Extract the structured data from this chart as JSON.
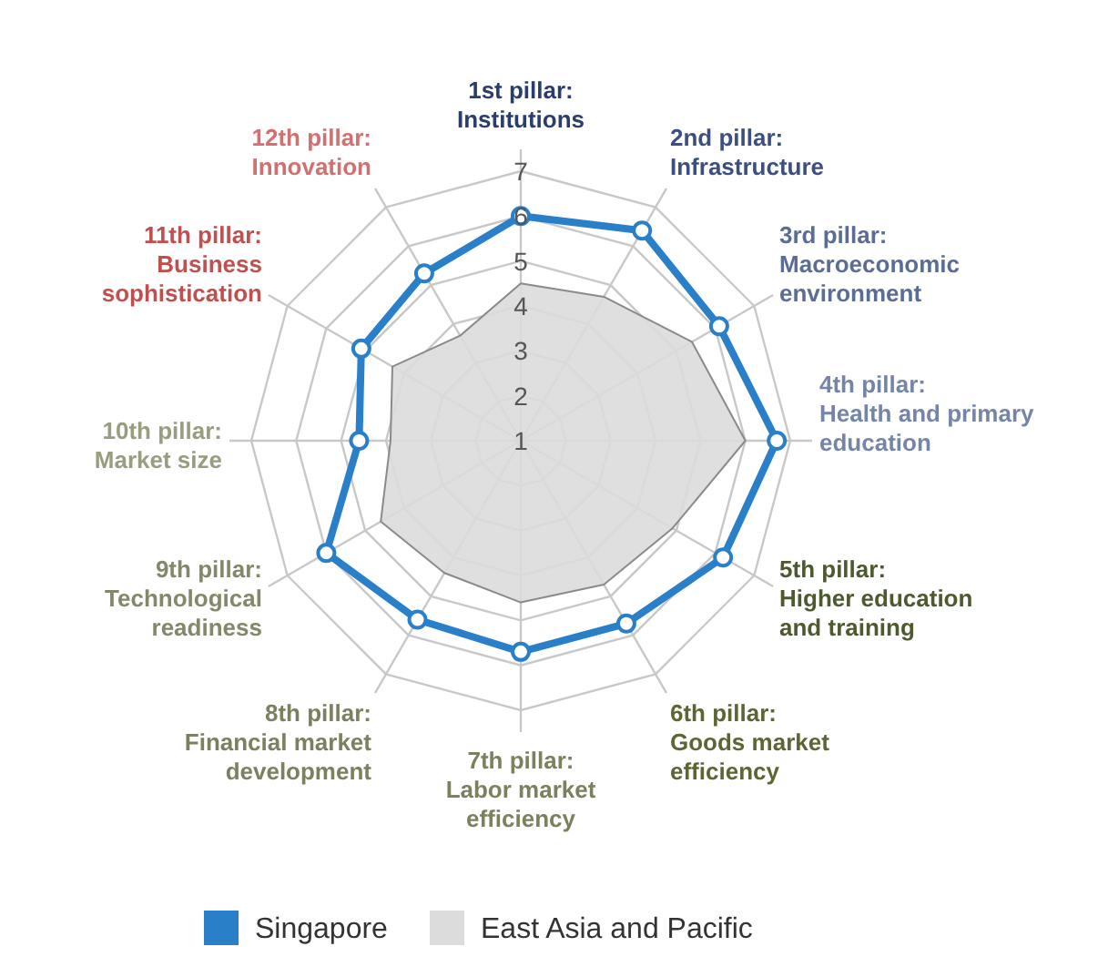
{
  "chart_data": {
    "type": "radar",
    "categories": [
      "1st pillar:\nInstitutions",
      "2nd pillar:\nInfrastructure",
      "3rd pillar:\nMacroeconomic\nenvironment",
      "4th pillar:\nHealth and primary\neducation",
      "5th pillar:\nHigher education\nand training",
      "6th pillar:\nGoods market\nefficiency",
      "7th pillar:\nLabor market\nefficiency",
      "8th pillar:\nFinancial market\ndevelopment",
      "9th pillar:\nTechnological\nreadiness",
      "10th pillar:\nMarket size",
      "11th pillar:\nBusiness\nsophistication",
      "12th pillar:\nInnovation"
    ],
    "series": [
      {
        "name": "Singapore",
        "color": "#2a7fc9",
        "values": [
          6.0,
          6.4,
          6.1,
          6.7,
          6.2,
          5.7,
          5.7,
          5.6,
          6.0,
          4.6,
          5.1,
          5.3
        ]
      },
      {
        "name": "East Asia and Pacific",
        "color": "#dddcdd",
        "values": [
          4.5,
          4.7,
          5.4,
          6.0,
          4.9,
          4.7,
          4.6,
          4.4,
          4.6,
          3.9,
          4.3,
          3.7
        ]
      }
    ],
    "ylim": [
      1,
      7
    ],
    "yticks": [
      1,
      2,
      3,
      4,
      5,
      6,
      7
    ],
    "grid": true,
    "legend": "bottom",
    "marker": "circle"
  }
}
